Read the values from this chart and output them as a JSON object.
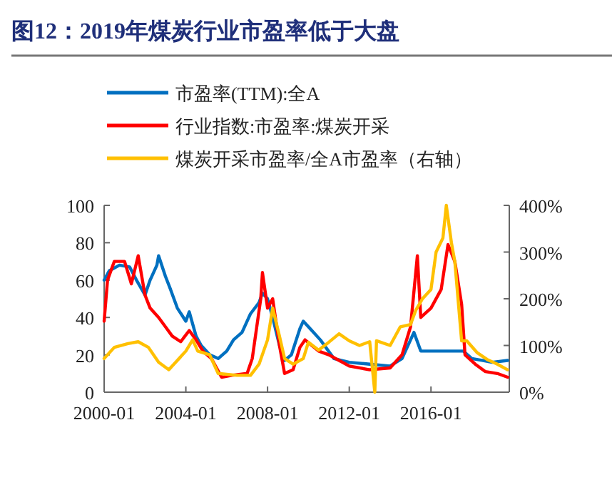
{
  "chart_data": {
    "type": "line",
    "title": "图12：2019年煤炭行业市盈率低于大盘",
    "legend": "top",
    "grid": false,
    "line_style": "solid",
    "marker": "none",
    "xlim": [
      "2000-01",
      "2019-11"
    ],
    "xticks": [
      "2000-01",
      "2004-01",
      "2008-01",
      "2012-01",
      "2016-01"
    ],
    "ylim": [
      0,
      100
    ],
    "yticks": [
      0,
      20,
      40,
      60,
      80,
      100
    ],
    "y2lim": [
      0,
      400
    ],
    "y2ticks": [
      {
        "value": 0,
        "label": "0%"
      },
      {
        "value": 100,
        "label": "100%"
      },
      {
        "value": 200,
        "label": "200%"
      },
      {
        "value": 300,
        "label": "300%"
      },
      {
        "value": 400,
        "label": "400%"
      }
    ],
    "series": [
      {
        "name": "市盈率(TTM):全A",
        "color": "#0070c0",
        "x": [
          "2000-01",
          "2000-04",
          "2000-10",
          "2001-04",
          "2001-08",
          "2002-01",
          "2002-04",
          "2002-08",
          "2002-09",
          "2003-01",
          "2003-04",
          "2003-08",
          "2004-01",
          "2004-03",
          "2004-07",
          "2004-10",
          "2005-03",
          "2005-08",
          "2006-01",
          "2006-05",
          "2006-10",
          "2007-03",
          "2007-08",
          "2007-10",
          "2008-01",
          "2008-04",
          "2008-08",
          "2008-11",
          "2009-03",
          "2009-08",
          "2009-10",
          "2010-03",
          "2010-08",
          "2011-04",
          "2012-01",
          "2013-01",
          "2014-01",
          "2014-08",
          "2015-03",
          "2015-07",
          "2016-01",
          "2017-01",
          "2017-08",
          "2018-01",
          "2018-07",
          "2019-01",
          "2019-10"
        ],
        "values": [
          60,
          65,
          68,
          67,
          60,
          52,
          60,
          68,
          73,
          62,
          55,
          45,
          38,
          43,
          30,
          25,
          20,
          18,
          22,
          28,
          32,
          42,
          48,
          53,
          50,
          40,
          25,
          17,
          20,
          34,
          38,
          33,
          28,
          18,
          16,
          15,
          14,
          18,
          32,
          22,
          22,
          22,
          22,
          18,
          17,
          16,
          17
        ]
      },
      {
        "name": "行业指数:市盈率:煤炭开采",
        "color": "#ff0000",
        "x": [
          "2000-01",
          "2000-03",
          "2000-07",
          "2001-01",
          "2001-05",
          "2001-09",
          "2002-01",
          "2002-04",
          "2002-09",
          "2003-01",
          "2003-05",
          "2003-10",
          "2004-03",
          "2004-07",
          "2004-11",
          "2005-04",
          "2005-10",
          "2006-04",
          "2007-01",
          "2007-04",
          "2007-09",
          "2007-10",
          "2008-01",
          "2008-04",
          "2008-08",
          "2008-11",
          "2009-04",
          "2009-08",
          "2009-11",
          "2010-07",
          "2011-01",
          "2011-07",
          "2012-01",
          "2013-01",
          "2014-01",
          "2014-08",
          "2015-01",
          "2015-05",
          "2015-07",
          "2016-01",
          "2016-07",
          "2016-11",
          "2017-03",
          "2017-07",
          "2017-09",
          "2018-03",
          "2018-09",
          "2019-04",
          "2019-10"
        ],
        "values": [
          38,
          60,
          70,
          70,
          58,
          73,
          52,
          45,
          40,
          35,
          30,
          27,
          33,
          28,
          22,
          18,
          8,
          9,
          10,
          18,
          50,
          64,
          45,
          50,
          25,
          10,
          12,
          24,
          28,
          22,
          20,
          17,
          14,
          12,
          13,
          20,
          35,
          73,
          40,
          45,
          55,
          79,
          70,
          47,
          20,
          15,
          11,
          10,
          8
        ]
      },
      {
        "name": "煤炭开采市盈率/全A市盈率（右轴）",
        "color": "#ffc000",
        "axis": "y2",
        "x": [
          "2000-01",
          "2000-07",
          "2001-03",
          "2001-09",
          "2002-03",
          "2002-09",
          "2003-03",
          "2003-08",
          "2004-01",
          "2004-05",
          "2004-08",
          "2005-03",
          "2005-08",
          "2006-07",
          "2007-03",
          "2007-08",
          "2008-01",
          "2008-04",
          "2008-08",
          "2008-11",
          "2009-04",
          "2009-10",
          "2010-01",
          "2010-07",
          "2011-01",
          "2011-07",
          "2012-01",
          "2012-07",
          "2013-01",
          "2013-04",
          "2013-05",
          "2014-01",
          "2014-07",
          "2015-01",
          "2015-04",
          "2015-08",
          "2016-01",
          "2016-04",
          "2016-08",
          "2016-10",
          "2017-01",
          "2017-03",
          "2017-07",
          "2017-10",
          "2018-04",
          "2018-10",
          "2019-04",
          "2019-10"
        ],
        "values": [
          72,
          96,
          104,
          108,
          96,
          64,
          48,
          68,
          88,
          112,
          88,
          80,
          40,
          36,
          36,
          60,
          112,
          180,
          120,
          72,
          60,
          72,
          107,
          90,
          107,
          125,
          110,
          100,
          108,
          0,
          110,
          100,
          140,
          145,
          175,
          200,
          220,
          300,
          330,
          400,
          320,
          280,
          110,
          110,
          85,
          70,
          60,
          48
        ]
      }
    ]
  }
}
